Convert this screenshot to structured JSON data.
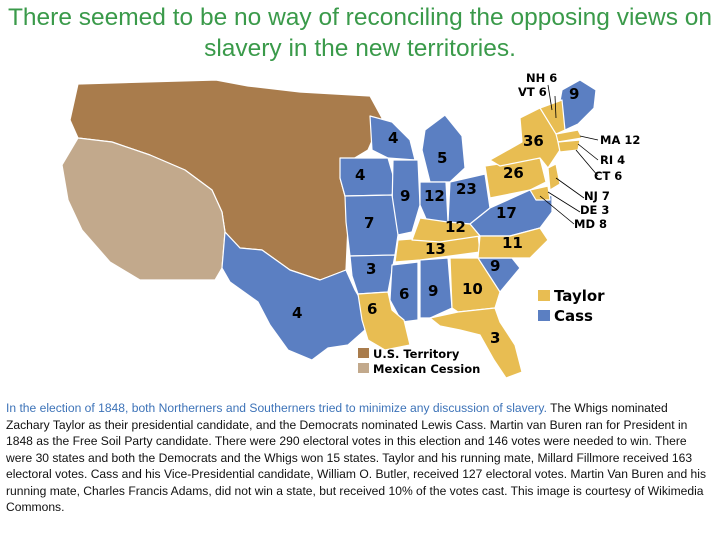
{
  "title": "There seemed to be no way of reconciling the opposing views on slavery in the new territories.",
  "colors": {
    "taylor": "#e8bd52",
    "cass": "#5b7fc2",
    "territory": "#a97c4c",
    "mexican_cession": "#c2a98c",
    "title": "#3a9a4a",
    "caption_lead": "#3d73b8"
  },
  "map": {
    "legend": {
      "taylor": "Taylor",
      "cass": "Cass",
      "territory": "U.S. Territory",
      "cession": "Mexican Cession"
    },
    "states": {
      "texas": "4",
      "wisconsin": "4",
      "iowa": "4",
      "michigan": "5",
      "illinois": "9",
      "indiana": "12",
      "ohio": "23",
      "missouri": "7",
      "arkansas": "3",
      "louisiana": "6",
      "mississippi": "6",
      "alabama": "9",
      "georgia": "10",
      "florida": "3",
      "tennessee": "13",
      "kentucky": "12",
      "virginia": "17",
      "north_carolina": "11",
      "south_carolina": "9",
      "pennsylvania": "26",
      "new_york": "36",
      "maine": "9"
    },
    "callouts": {
      "nh": "NH 6",
      "vt": "VT 6",
      "ma": "MA 12",
      "ri": "RI 4",
      "ct": "CT 6",
      "nj": "NJ 7",
      "de": "DE 3",
      "md": "MD 8"
    }
  },
  "caption": {
    "lead": "In the election of 1848, both Northerners and Southerners tried to minimize any discussion of slavery.",
    "body": " The Whigs nominated Zachary Taylor as their presidential candidate, and the Democrats nominated Lewis Cass. Martin van Buren ran for President in 1848 as the Free Soil Party candidate. There were 290 electoral votes in this election and 146 votes were needed to win. There were 30 states and both the Democrats and the Whigs won 15 states. Taylor and his running mate, Millard Fillmore received 163 electoral votes. Cass and his Vice-Presidential candidate, William O. Butler, received 127 electoral votes. Martin Van Buren and his running mate, Charles Francis Adams, did not win a state, but received 10% of the votes cast. This image is courtesy of Wikimedia Commons."
  }
}
